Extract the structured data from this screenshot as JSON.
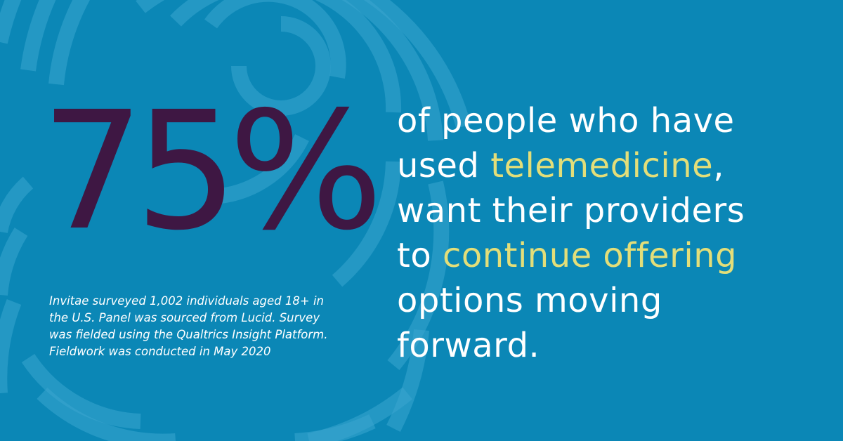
{
  "stat": {
    "value": "75%"
  },
  "headline": {
    "line1": "of people who have",
    "line2_prefix": "used ",
    "line2_highlight": "telemedicine",
    "line2_suffix": ",",
    "line3": "want their providers",
    "line4_prefix": "to ",
    "line4_highlight": "continue offering",
    "line5": "options moving",
    "line6": "forward."
  },
  "footnote": {
    "line1": "Invitae surveyed 1,002 individuals aged 18+ in",
    "line2": "the U.S. Panel was sourced from Lucid. Survey",
    "line3": "was fielded using the Qualtrics Insight Platform.",
    "line4": "Fieldwork was conducted in May 2020"
  },
  "colors": {
    "background": "#0b87b6",
    "stat": "#3e1743",
    "highlight": "#e3de79",
    "text": "#ffffff",
    "rings": "#3aa6cf"
  },
  "decoration": {
    "name": "concentric-arcs-pattern"
  }
}
